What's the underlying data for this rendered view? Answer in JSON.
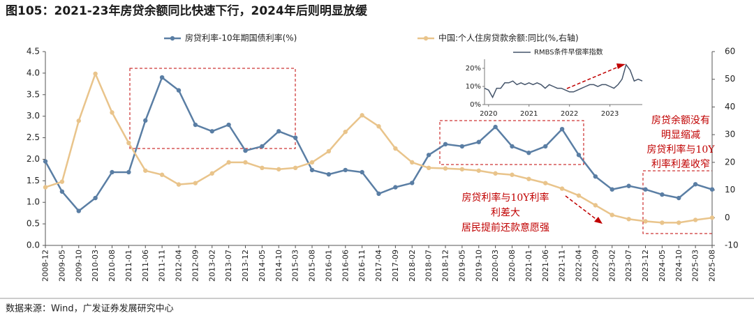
{
  "title": "图105：2021-23年房贷余额同比快速下行，2024年后则明显放缓",
  "source": "数据来源：Wind，广发证券发展研究中心",
  "chart_data": [
    {
      "type": "line",
      "categories": [
        "2008-12",
        "2009-05",
        "2009-10",
        "2010-03",
        "2010-08",
        "2011-01",
        "2011-06",
        "2011-11",
        "2012-04",
        "2012-09",
        "2013-02",
        "2013-07",
        "2013-12",
        "2014-05",
        "2014-10",
        "2015-03",
        "2015-08",
        "2016-01",
        "2016-06",
        "2016-11",
        "2017-04",
        "2017-09",
        "2018-02",
        "2018-07",
        "2018-12",
        "2019-05",
        "2019-10",
        "2020-03",
        "2020-08",
        "2021-01",
        "2021-06",
        "2021-11",
        "2022-04",
        "2022-09",
        "2023-02",
        "2023-07",
        "2023-12",
        "2024-05",
        "2024-10",
        "2025-03",
        "2025-08"
      ],
      "series": [
        {
          "name": "房贷利率-10年期国债利率(%)",
          "color": "#5a7ea4",
          "values": [
            1.95,
            1.25,
            0.8,
            1.1,
            1.7,
            1.7,
            2.9,
            3.9,
            3.6,
            2.8,
            2.65,
            2.8,
            2.2,
            2.3,
            2.65,
            2.5,
            1.75,
            1.65,
            1.75,
            1.7,
            1.2,
            1.35,
            1.45,
            2.1,
            2.35,
            2.3,
            2.4,
            2.75,
            2.3,
            2.15,
            2.3,
            2.7,
            2.1,
            1.6,
            1.3,
            1.38,
            1.3,
            1.18,
            1.1,
            1.42,
            1.3
          ]
        },
        {
          "name": "中国:个人住房贷款余额:同比(%,右轴)",
          "color": "#e9c48b",
          "axis": "y2",
          "values": [
            11,
            13,
            35,
            52,
            38,
            27,
            17,
            15.5,
            12,
            12.5,
            16,
            20,
            20,
            18,
            17.5,
            18,
            20,
            24,
            31,
            37,
            33,
            25,
            20,
            18,
            17.8,
            17.5,
            17,
            16,
            15.5,
            14,
            12.5,
            10.5,
            8,
            4.5,
            1,
            -0.5,
            -1.3,
            -1.8,
            -1.8,
            -0.8,
            0
          ]
        }
      ],
      "ylim": [
        0,
        4.5
      ],
      "yticks": [
        {
          "value": 0,
          "label": "0.0"
        },
        0.5,
        {
          "value": 1,
          "label": "1.0"
        },
        1.5,
        {
          "value": 2,
          "label": "2.0"
        },
        2.5,
        {
          "value": 3,
          "label": "3.0"
        },
        3.5,
        {
          "value": 4,
          "label": "4.0"
        },
        4.5
      ],
      "y2lim": [
        -10,
        60
      ],
      "y2ticks": [
        -10,
        0,
        10,
        20,
        30,
        40,
        50,
        60
      ],
      "annotations": [
        {
          "lines": [
            "房贷余额没有",
            "明显缩减",
            "房贷利率与10Y",
            "利率利差收窄"
          ]
        },
        {
          "lines": [
            "房贷利率与10Y利率",
            "利差大",
            "居民提前还款意愿强"
          ]
        }
      ]
    },
    {
      "type": "line",
      "series": [
        {
          "name": "RMBS条件早偿率指数",
          "color": "#44546a",
          "x": [
            2019.9,
            2020.0,
            2020.1,
            2020.2,
            2020.3,
            2020.4,
            2020.5,
            2020.6,
            2020.7,
            2020.8,
            2020.9,
            2021.0,
            2021.1,
            2021.2,
            2021.3,
            2021.4,
            2021.5,
            2021.6,
            2021.7,
            2021.8,
            2021.9,
            2022.0,
            2022.1,
            2022.2,
            2022.3,
            2022.4,
            2022.5,
            2022.6,
            2022.7,
            2022.8,
            2022.9,
            2023.0,
            2023.1,
            2023.2,
            2023.3,
            2023.4,
            2023.5,
            2023.6,
            2023.7,
            2023.8
          ],
          "values": [
            9,
            8,
            4,
            9,
            9,
            12,
            12,
            13,
            11,
            12,
            11,
            12,
            11,
            12,
            11,
            9,
            11,
            10,
            9,
            9,
            8,
            7,
            7,
            8,
            9,
            10,
            11,
            11,
            10,
            11,
            11,
            10,
            9,
            11,
            14,
            22,
            19,
            13,
            14,
            13
          ]
        }
      ],
      "xlim": [
        2019.9,
        2023.8
      ],
      "xticks": [
        2020,
        2021,
        2022,
        2023
      ],
      "ylim": [
        0,
        25
      ],
      "yticks": [
        {
          "value": 0,
          "label": "0%"
        },
        {
          "value": 10,
          "label": "10%"
        },
        {
          "value": 20,
          "label": "20%"
        }
      ]
    }
  ]
}
